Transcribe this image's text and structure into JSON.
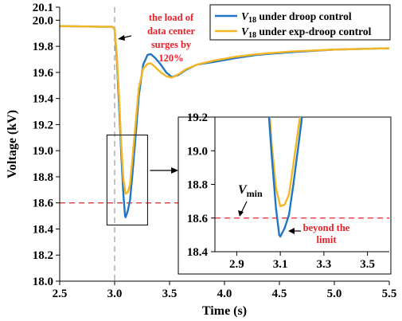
{
  "chart_data": {
    "type": "line",
    "xlabel": "Time (s)",
    "ylabel": "Voltage (kV)",
    "xlim": [
      2.5,
      5.5
    ],
    "ylim": [
      18.0,
      20.1
    ],
    "xticks": [
      "2.5",
      "3.0",
      "3.5",
      "4.0",
      "4.5",
      "5.0",
      "5.5"
    ],
    "yticks": [
      "18.0",
      "18.2",
      "18.4",
      "18.6",
      "18.8",
      "19.0",
      "19.2",
      "19.4",
      "19.6",
      "19.8",
      "20.0",
      "20.1"
    ],
    "grid": false,
    "legend_position": "top-right",
    "series": [
      {
        "name": "V18 under droop control",
        "legend_main": "V",
        "legend_sub": "18",
        "legend_rest": " under droop control",
        "color": "#1f77c4",
        "x": [
          2.5,
          2.9,
          2.98,
          3.0,
          3.02,
          3.04,
          3.06,
          3.08,
          3.095,
          3.1,
          3.12,
          3.14,
          3.16,
          3.19,
          3.22,
          3.26,
          3.3,
          3.33,
          3.37,
          3.42,
          3.47,
          3.52,
          3.58,
          3.65,
          3.75,
          3.9,
          4.1,
          4.3,
          4.6,
          5.0,
          5.5
        ],
        "y": [
          19.955,
          19.95,
          19.95,
          19.93,
          19.7,
          19.35,
          18.98,
          18.66,
          18.5,
          18.49,
          18.54,
          18.62,
          18.8,
          19.1,
          19.42,
          19.66,
          19.735,
          19.74,
          19.71,
          19.66,
          19.6,
          19.565,
          19.58,
          19.62,
          19.66,
          19.68,
          19.71,
          19.735,
          19.755,
          19.775,
          19.785
        ]
      },
      {
        "name": "V18 under exp-droop control",
        "legend_main": "V",
        "legend_sub": "18",
        "legend_rest": " under exp-droop control",
        "color": "#f5b623",
        "x": [
          2.5,
          2.9,
          2.98,
          3.0,
          3.02,
          3.04,
          3.06,
          3.08,
          3.1,
          3.12,
          3.14,
          3.16,
          3.19,
          3.22,
          3.26,
          3.3,
          3.33,
          3.37,
          3.42,
          3.47,
          3.52,
          3.58,
          3.65,
          3.75,
          3.9,
          4.1,
          4.3,
          4.6,
          5.0,
          5.5
        ],
        "y": [
          19.955,
          19.95,
          19.95,
          19.93,
          19.73,
          19.42,
          19.05,
          18.78,
          18.67,
          18.68,
          18.74,
          18.92,
          19.2,
          19.48,
          19.63,
          19.665,
          19.67,
          19.64,
          19.6,
          19.57,
          19.56,
          19.585,
          19.625,
          19.66,
          19.69,
          19.72,
          19.74,
          19.76,
          19.775,
          19.785
        ]
      }
    ],
    "reference_lines": [
      {
        "axis": "y",
        "value": 18.6,
        "style": "dashed",
        "color": "#e8202a"
      },
      {
        "axis": "x",
        "value": 3.0,
        "style": "dashed",
        "color": "#999999"
      }
    ],
    "annotations": {
      "event_lines": [
        "the load of",
        "data center",
        "surges by",
        "120%"
      ],
      "limit_lines": [
        "beyond the",
        "limit"
      ],
      "vmin_main": "V",
      "vmin_sub": "min"
    },
    "inset": {
      "xlim": [
        2.8,
        3.6
      ],
      "ylim": [
        18.4,
        19.2
      ],
      "xticks": [
        "2.9",
        "3.1",
        "3.3",
        "3.5"
      ],
      "yticks": [
        "18.4",
        "18.6",
        "18.8",
        "19.0",
        "19.2"
      ]
    },
    "zoom_box": {
      "xlim": [
        2.93,
        3.3
      ],
      "ylim": [
        18.43,
        19.12
      ]
    }
  }
}
